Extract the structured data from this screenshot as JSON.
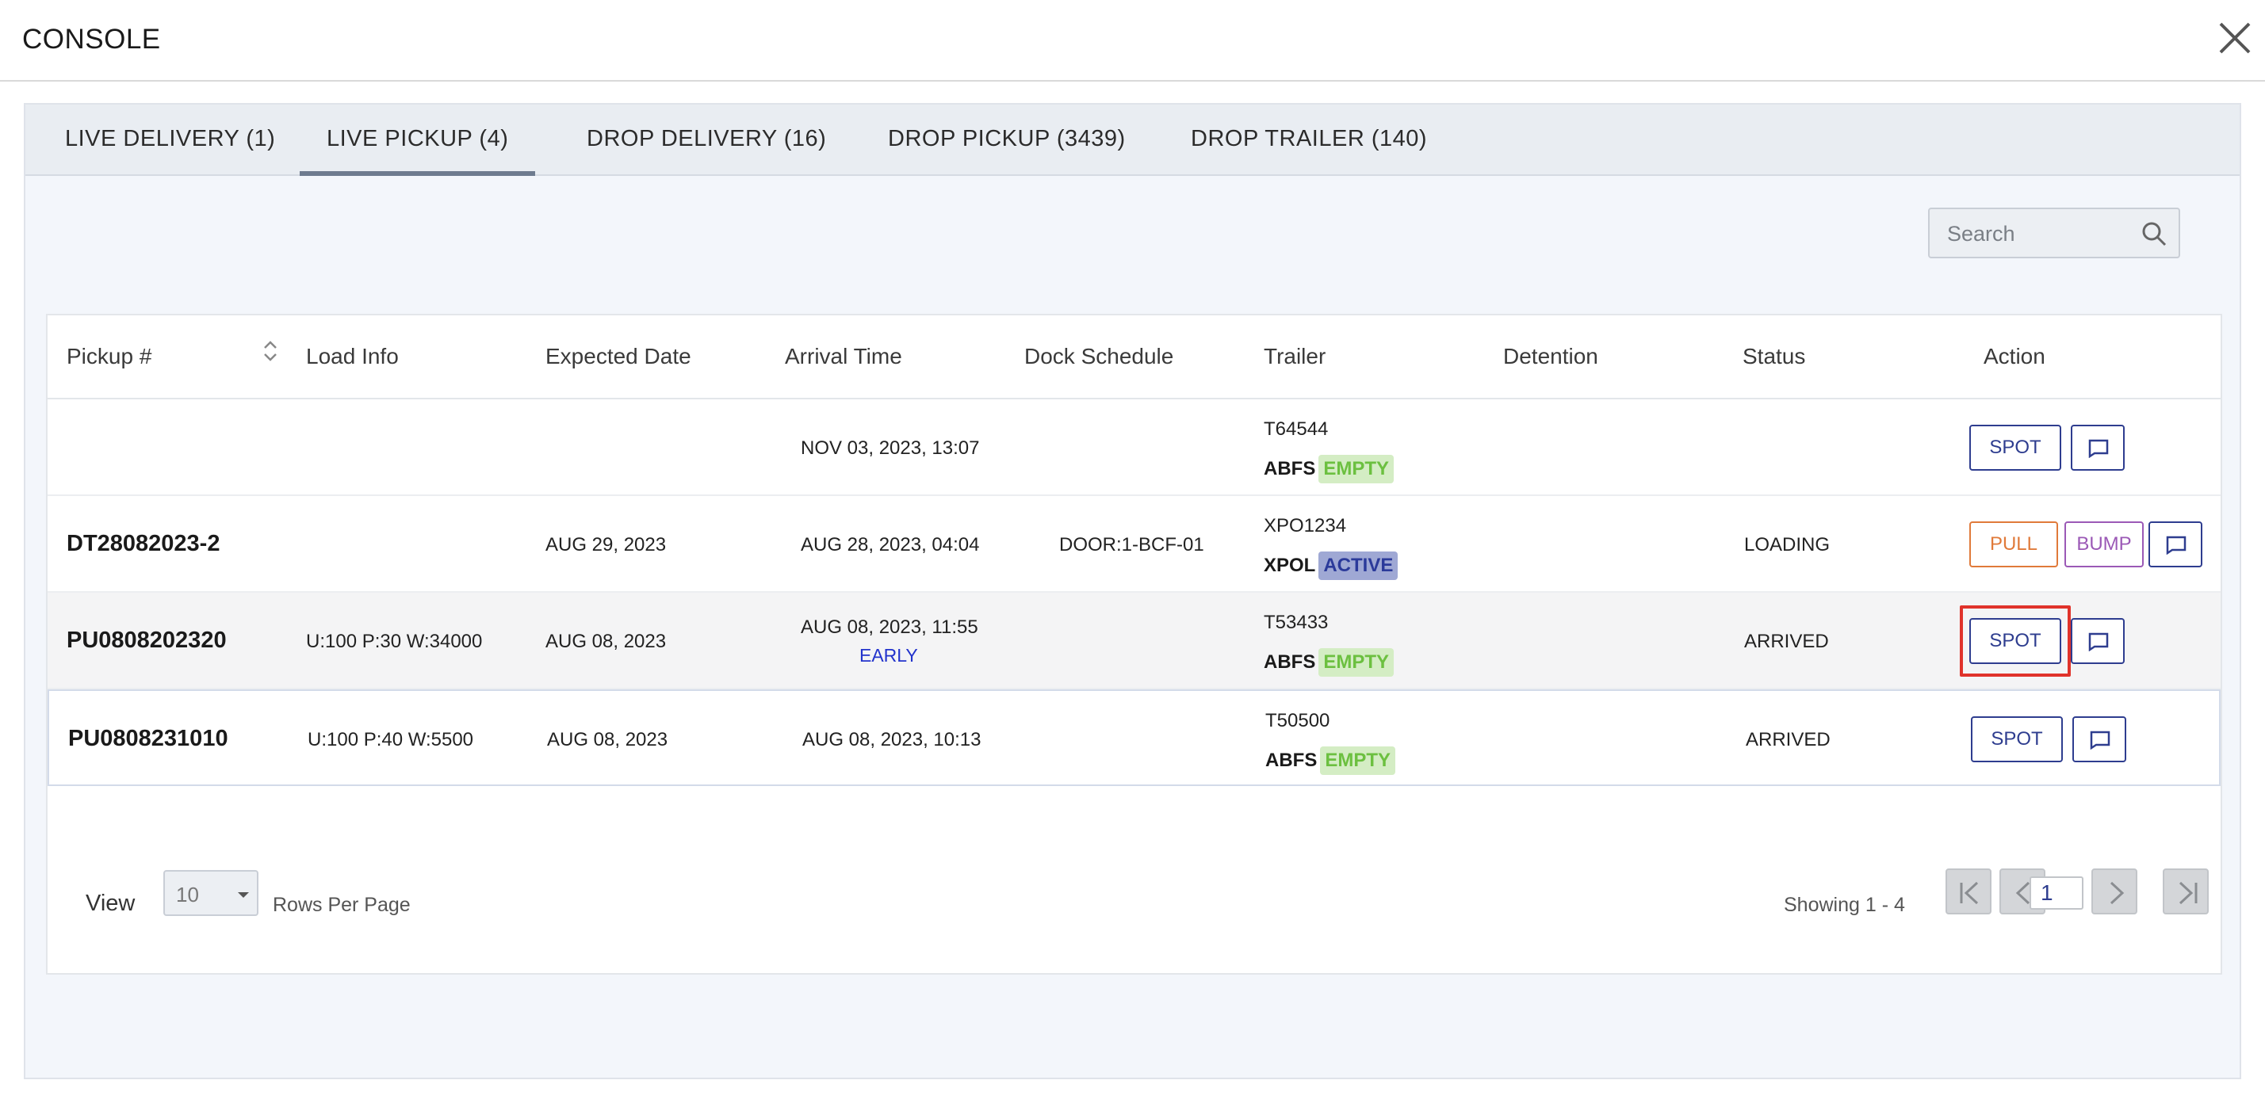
{
  "header": {
    "title": "CONSOLE"
  },
  "tabs": [
    {
      "label": "LIVE DELIVERY (1)"
    },
    {
      "label": "LIVE PICKUP (4)",
      "active": true
    },
    {
      "label": "DROP DELIVERY (16)"
    },
    {
      "label": "DROP PICKUP (3439)"
    },
    {
      "label": "DROP TRAILER (140)"
    }
  ],
  "search": {
    "placeholder": "Search",
    "value": ""
  },
  "table": {
    "columns": [
      "Pickup #",
      "Load Info",
      "Expected Date",
      "Arrival Time",
      "Dock Schedule",
      "Trailer",
      "Detention",
      "Status",
      "Action"
    ],
    "rows": [
      {
        "pickup": "",
        "load_info": "",
        "expected_date": "",
        "arrival_time": "NOV 03, 2023, 13:07",
        "arrival_note": "",
        "dock": "",
        "trailer_number": "T64544",
        "carrier": "ABFS",
        "trailer_status": "EMPTY",
        "detention": "",
        "status": "",
        "actions": [
          "SPOT"
        ]
      },
      {
        "pickup": "DT28082023-2",
        "load_info": "",
        "expected_date": "AUG 29, 2023",
        "arrival_time": "AUG 28, 2023, 04:04",
        "arrival_note": "",
        "dock": "DOOR:1-BCF-01",
        "trailer_number": "XPO1234",
        "carrier": "XPOL",
        "trailer_status": "ACTIVE",
        "detention": "",
        "status": "LOADING",
        "actions": [
          "PULL",
          "BUMP"
        ]
      },
      {
        "pickup": "PU0808202320",
        "load_info": "U:100 P:30 W:34000",
        "expected_date": "AUG 08, 2023",
        "arrival_time": "AUG 08, 2023, 11:55",
        "arrival_note": "EARLY",
        "dock": "",
        "trailer_number": "T53433",
        "carrier": "ABFS",
        "trailer_status": "EMPTY",
        "detention": "",
        "status": "ARRIVED",
        "actions": [
          "SPOT"
        ]
      },
      {
        "pickup": "PU0808231010",
        "load_info": "U:100 P:40 W:5500",
        "expected_date": "AUG 08, 2023",
        "arrival_time": "AUG 08, 2023, 10:13",
        "arrival_note": "",
        "dock": "",
        "trailer_number": "T50500",
        "carrier": "ABFS",
        "trailer_status": "EMPTY",
        "detention": "",
        "status": "ARRIVED",
        "actions": [
          "SPOT"
        ]
      }
    ]
  },
  "footer": {
    "view_label": "View",
    "rows_per_page_value": "10",
    "rows_per_page_label": "Rows Per Page",
    "showing": "Showing 1 - 4",
    "current_page": "1"
  },
  "colors": {
    "spot": "#2e3d8f",
    "pull": "#e07a3a",
    "bump": "#9b59b6",
    "empty_badge_bg": "#d4edc4",
    "active_badge_bg": "#9fa8d4",
    "focus_ring": "#e0332b"
  },
  "icons": {
    "close": "close-icon",
    "search": "search-icon",
    "sort": "sort-icon",
    "message": "message-icon",
    "first": "first-page-icon",
    "prev": "prev-page-icon",
    "next": "next-page-icon",
    "last": "last-page-icon"
  }
}
